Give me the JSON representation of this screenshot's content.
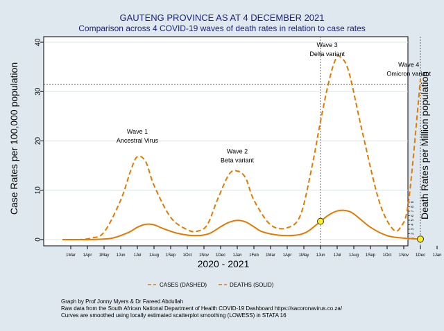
{
  "chart_data": {
    "type": "line",
    "title": "GAUTENG PROVINCE AS AT 4 DECEMBER 2021",
    "subtitle": "Comparison across 4 COVID-19 waves of death rates in relation to case rates",
    "xlabel": "2020 - 2021",
    "ylabel": "Case Rates per 100,000 population",
    "ylabel_right": "Death Rates per Million population",
    "ylim": [
      0,
      40
    ],
    "yticks": [
      0,
      10,
      20,
      30,
      40
    ],
    "xlim": [
      0,
      22
    ],
    "xticks": [
      {
        "x": 1,
        "label": "1Mar"
      },
      {
        "x": 2,
        "label": "1Apr"
      },
      {
        "x": 3,
        "label": "1May"
      },
      {
        "x": 4,
        "label": "1Jun"
      },
      {
        "x": 5,
        "label": "1Jul"
      },
      {
        "x": 6,
        "label": "1Aug"
      },
      {
        "x": 7,
        "label": "1Sep"
      },
      {
        "x": 8,
        "label": "1Oct"
      },
      {
        "x": 9,
        "label": "1Nov"
      },
      {
        "x": 10,
        "label": "1Dec"
      },
      {
        "x": 11,
        "label": "1Jan"
      },
      {
        "x": 12,
        "label": "1Feb"
      },
      {
        "x": 13,
        "label": "1Mar"
      },
      {
        "x": 14,
        "label": "1Apr"
      },
      {
        "x": 15,
        "label": "1May"
      },
      {
        "x": 16,
        "label": "1Jun"
      },
      {
        "x": 17,
        "label": "1Jul"
      },
      {
        "x": 18,
        "label": "1Aug"
      },
      {
        "x": 19,
        "label": "1Sep"
      },
      {
        "x": 20,
        "label": "1Oct"
      },
      {
        "x": 21,
        "label": "1Nov"
      },
      {
        "x": 22,
        "label": "1Dec"
      },
      {
        "x": 23,
        "label": "1Jan"
      }
    ],
    "right_ticks": [
      "1",
      "2",
      "3",
      "4",
      "5",
      "6",
      "7",
      "8",
      "9"
    ],
    "series": [
      {
        "name": "CASES (DASHED)",
        "style": "dashed",
        "color": "#e07b00",
        "x": [
          0.5,
          1.5,
          2.2,
          3.0,
          4.0,
          4.6,
          5.0,
          5.5,
          6.0,
          7.0,
          8.0,
          8.6,
          9.2,
          9.8,
          10.5,
          11.0,
          11.5,
          12.0,
          13.0,
          14.0,
          14.8,
          15.5,
          16.0,
          16.5,
          16.9,
          17.2,
          17.7,
          18.5,
          19.5,
          20.3,
          20.8,
          21.3,
          22.0
        ],
        "values": [
          0,
          0,
          0.3,
          1.5,
          8.0,
          14.0,
          16.8,
          15.8,
          11.0,
          4.5,
          2.0,
          1.7,
          3.0,
          8.0,
          13.2,
          13.9,
          12.5,
          8.0,
          3.0,
          2.4,
          5.0,
          15.0,
          24.0,
          32.0,
          36.5,
          37.0,
          34.0,
          22.0,
          8.0,
          2.3,
          2.5,
          8.0,
          32.5
        ]
      },
      {
        "name": "DEATHS (SOLID)",
        "style": "solid",
        "color": "#e07b00",
        "x": [
          0.5,
          1.5,
          2.5,
          3.5,
          4.5,
          5.0,
          5.5,
          6.0,
          6.5,
          7.5,
          8.5,
          9.3,
          10.0,
          10.5,
          11.0,
          11.5,
          12.0,
          12.5,
          13.5,
          14.5,
          15.2,
          16.0,
          16.5,
          17.0,
          17.5,
          18.0,
          19.0,
          20.0,
          21.0,
          22.0
        ],
        "values": [
          0,
          0,
          0.05,
          0.3,
          1.5,
          2.5,
          3.1,
          3.0,
          2.3,
          1.2,
          0.8,
          1.2,
          2.6,
          3.5,
          3.9,
          3.6,
          2.6,
          1.6,
          0.9,
          0.9,
          1.6,
          3.7,
          5.0,
          5.8,
          5.9,
          5.2,
          2.5,
          0.8,
          0.3,
          0.1
        ]
      }
    ],
    "markers": [
      {
        "x": 16.0,
        "y": 3.7,
        "color": "#ffee22"
      },
      {
        "x": 22.0,
        "y": 0.1,
        "color": "#ffee22"
      }
    ],
    "reference_lines": [
      {
        "orientation": "horizontal",
        "y": 31.5
      },
      {
        "orientation": "vertical",
        "x": 16.0
      },
      {
        "orientation": "vertical",
        "x": 22.0
      }
    ],
    "annotations": [
      {
        "x": 5.0,
        "y": 21.5,
        "lines": [
          "Wave 1",
          "Ancestral Virus"
        ]
      },
      {
        "x": 11.0,
        "y": 17.5,
        "lines": [
          "Wave 2",
          "Beta  variant"
        ]
      },
      {
        "x": 16.4,
        "y": 39.0,
        "lines": [
          "Wave 3",
          "Delta variant"
        ]
      },
      {
        "x": 21.3,
        "y": 35.0,
        "lines": [
          "Wave 4",
          "Omicron  variant"
        ]
      }
    ],
    "legend": {
      "position": "bottom",
      "entries": [
        "CASES (DASHED)",
        "DEATHS (SOLID)"
      ]
    },
    "grid": true,
    "colors": {
      "line": "#e07b00",
      "background": "#dfe8ee",
      "plot_background": "#ffffff",
      "grid": "#dce5ea",
      "marker": "#ffee22"
    }
  },
  "footnote": [
    "Graph by Prof Jonny Myers & Dr Fareed Abdullah",
    "Raw data from the South African National Department of Health COVID-19 Dashboard  https://sacoronavirus.co.za/",
    "Curves are smoothed using locally estimated scatterplot smoothing (LOWESS) in STATA 16"
  ]
}
